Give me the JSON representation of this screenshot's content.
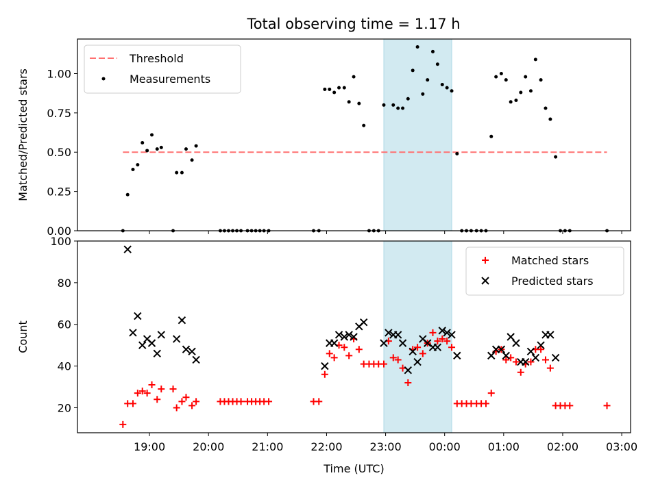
{
  "figure": {
    "title": "Total observing time = 1.17 h"
  },
  "colors": {
    "threshold": "#ff7070",
    "measurement": "#000000",
    "matched": "#ff0000",
    "predicted": "#000000",
    "observing_window": "#add8e6"
  },
  "chart_data": [
    {
      "type": "scatter",
      "panel": "top",
      "xlabel": "",
      "ylabel": "Matched/Predicted stars",
      "ylim": [
        0,
        1.22
      ],
      "xlim_hours": [
        17.78,
        27.15
      ],
      "yticks": [
        "0.00",
        "0.25",
        "0.50",
        "0.75",
        "1.00"
      ],
      "ytick_values": [
        0,
        0.25,
        0.5,
        0.75,
        1.0
      ],
      "grid": false,
      "legend": {
        "placement": "top-left",
        "entries": [
          "Threshold",
          "Measurements"
        ]
      },
      "shaded_interval_hours": [
        22.97,
        24.12
      ],
      "threshold": {
        "name": "Threshold",
        "value": 0.5,
        "x_start_hours": 18.55,
        "x_end_hours": 26.75
      },
      "series": [
        {
          "name": "Measurements",
          "marker": "dot",
          "points": [
            [
              18.55,
              0.0
            ],
            [
              18.63,
              0.23
            ],
            [
              18.72,
              0.39
            ],
            [
              18.8,
              0.42
            ],
            [
              18.88,
              0.56
            ],
            [
              18.96,
              0.51
            ],
            [
              19.04,
              0.61
            ],
            [
              19.13,
              0.52
            ],
            [
              19.2,
              0.53
            ],
            [
              19.4,
              0.0
            ],
            [
              19.46,
              0.37
            ],
            [
              19.55,
              0.37
            ],
            [
              19.62,
              0.52
            ],
            [
              19.72,
              0.45
            ],
            [
              19.79,
              0.54
            ],
            [
              20.2,
              0.0
            ],
            [
              20.27,
              0.0
            ],
            [
              20.34,
              0.0
            ],
            [
              20.41,
              0.0
            ],
            [
              20.48,
              0.0
            ],
            [
              20.55,
              0.0
            ],
            [
              20.66,
              0.0
            ],
            [
              20.73,
              0.0
            ],
            [
              20.8,
              0.0
            ],
            [
              20.87,
              0.0
            ],
            [
              20.94,
              0.0
            ],
            [
              21.02,
              0.0
            ],
            [
              21.78,
              0.0
            ],
            [
              21.87,
              0.0
            ],
            [
              21.97,
              0.9
            ],
            [
              22.05,
              0.9
            ],
            [
              22.13,
              0.88
            ],
            [
              22.21,
              0.91
            ],
            [
              22.3,
              0.91
            ],
            [
              22.38,
              0.82
            ],
            [
              22.46,
              0.98
            ],
            [
              22.55,
              0.81
            ],
            [
              22.63,
              0.67
            ],
            [
              22.72,
              0.0
            ],
            [
              22.8,
              0.0
            ],
            [
              22.88,
              0.0
            ],
            [
              22.97,
              0.8
            ],
            [
              23.13,
              0.8
            ],
            [
              23.21,
              0.78
            ],
            [
              23.29,
              0.78
            ],
            [
              23.38,
              0.84
            ],
            [
              23.46,
              1.02
            ],
            [
              23.54,
              1.17
            ],
            [
              23.63,
              0.87
            ],
            [
              23.71,
              0.96
            ],
            [
              23.8,
              1.14
            ],
            [
              23.88,
              1.06
            ],
            [
              23.96,
              0.93
            ],
            [
              24.04,
              0.91
            ],
            [
              24.12,
              0.89
            ],
            [
              24.21,
              0.49
            ],
            [
              24.29,
              0.0
            ],
            [
              24.37,
              0.0
            ],
            [
              24.45,
              0.0
            ],
            [
              24.54,
              0.0
            ],
            [
              24.62,
              0.0
            ],
            [
              24.7,
              0.0
            ],
            [
              24.79,
              0.6
            ],
            [
              24.87,
              0.98
            ],
            [
              24.96,
              1.0
            ],
            [
              25.04,
              0.96
            ],
            [
              25.12,
              0.82
            ],
            [
              25.21,
              0.83
            ],
            [
              25.29,
              0.88
            ],
            [
              25.37,
              0.98
            ],
            [
              25.46,
              0.89
            ],
            [
              25.54,
              1.09
            ],
            [
              25.63,
              0.96
            ],
            [
              25.71,
              0.78
            ],
            [
              25.79,
              0.71
            ],
            [
              25.88,
              0.47
            ],
            [
              25.96,
              0.0
            ],
            [
              26.04,
              0.0
            ],
            [
              26.12,
              0.0
            ],
            [
              26.75,
              0.0
            ]
          ]
        }
      ]
    },
    {
      "type": "scatter",
      "panel": "bottom",
      "xlabel": "Time (UTC)",
      "ylabel": "Count",
      "ylim": [
        8,
        100
      ],
      "xlim_hours": [
        17.78,
        27.15
      ],
      "yticks": [
        "20",
        "40",
        "60",
        "80",
        "100"
      ],
      "ytick_values": [
        20,
        40,
        60,
        80,
        100
      ],
      "xticks": [
        "19:00",
        "20:00",
        "21:00",
        "22:00",
        "23:00",
        "00:00",
        "01:00",
        "02:00",
        "03:00"
      ],
      "xtick_hours": [
        19,
        20,
        21,
        22,
        23,
        24,
        25,
        26,
        27
      ],
      "grid": false,
      "legend": {
        "placement": "top-right",
        "entries": [
          "Matched stars",
          "Predicted stars"
        ]
      },
      "shaded_interval_hours": [
        22.97,
        24.12
      ],
      "series": [
        {
          "name": "Matched stars",
          "marker": "plus",
          "points": [
            [
              18.55,
              12
            ],
            [
              18.63,
              22
            ],
            [
              18.72,
              22
            ],
            [
              18.8,
              27
            ],
            [
              18.88,
              28
            ],
            [
              18.96,
              27
            ],
            [
              19.04,
              31
            ],
            [
              19.13,
              24
            ],
            [
              19.2,
              29
            ],
            [
              19.4,
              29
            ],
            [
              19.46,
              20
            ],
            [
              19.55,
              23
            ],
            [
              19.62,
              25
            ],
            [
              19.72,
              21
            ],
            [
              19.79,
              23
            ],
            [
              20.2,
              23
            ],
            [
              20.27,
              23
            ],
            [
              20.34,
              23
            ],
            [
              20.41,
              23
            ],
            [
              20.48,
              23
            ],
            [
              20.55,
              23
            ],
            [
              20.66,
              23
            ],
            [
              20.73,
              23
            ],
            [
              20.8,
              23
            ],
            [
              20.87,
              23
            ],
            [
              20.94,
              23
            ],
            [
              21.02,
              23
            ],
            [
              21.78,
              23
            ],
            [
              21.87,
              23
            ],
            [
              21.97,
              36
            ],
            [
              22.05,
              46
            ],
            [
              22.13,
              44
            ],
            [
              22.21,
              50
            ],
            [
              22.3,
              49
            ],
            [
              22.38,
              45
            ],
            [
              22.46,
              53
            ],
            [
              22.55,
              48
            ],
            [
              22.63,
              41
            ],
            [
              22.72,
              41
            ],
            [
              22.8,
              41
            ],
            [
              22.88,
              41
            ],
            [
              22.97,
              41
            ],
            [
              23.05,
              52
            ],
            [
              23.13,
              44
            ],
            [
              23.21,
              43
            ],
            [
              23.29,
              39
            ],
            [
              23.38,
              32
            ],
            [
              23.46,
              48
            ],
            [
              23.54,
              49
            ],
            [
              23.63,
              46
            ],
            [
              23.71,
              51
            ],
            [
              23.8,
              56
            ],
            [
              23.88,
              52
            ],
            [
              23.96,
              53
            ],
            [
              24.04,
              52
            ],
            [
              24.12,
              49
            ],
            [
              24.21,
              22
            ],
            [
              24.29,
              22
            ],
            [
              24.37,
              22
            ],
            [
              24.45,
              22
            ],
            [
              24.54,
              22
            ],
            [
              24.62,
              22
            ],
            [
              24.7,
              22
            ],
            [
              24.79,
              27
            ],
            [
              24.87,
              47
            ],
            [
              24.96,
              48
            ],
            [
              25.04,
              43
            ],
            [
              25.12,
              44
            ],
            [
              25.21,
              42
            ],
            [
              25.29,
              37
            ],
            [
              25.37,
              41
            ],
            [
              25.46,
              42
            ],
            [
              25.54,
              48
            ],
            [
              25.63,
              48
            ],
            [
              25.71,
              43
            ],
            [
              25.79,
              39
            ],
            [
              25.88,
              21
            ],
            [
              25.96,
              21
            ],
            [
              26.04,
              21
            ],
            [
              26.12,
              21
            ],
            [
              26.75,
              21
            ]
          ]
        },
        {
          "name": "Predicted stars",
          "marker": "x",
          "points": [
            [
              18.63,
              96
            ],
            [
              18.72,
              56
            ],
            [
              18.8,
              64
            ],
            [
              18.88,
              50
            ],
            [
              18.96,
              53
            ],
            [
              19.04,
              51
            ],
            [
              19.13,
              46
            ],
            [
              19.2,
              55
            ],
            [
              19.46,
              53
            ],
            [
              19.55,
              62
            ],
            [
              19.62,
              48
            ],
            [
              19.72,
              47
            ],
            [
              19.79,
              43
            ],
            [
              21.97,
              40
            ],
            [
              22.05,
              51
            ],
            [
              22.13,
              51
            ],
            [
              22.21,
              55
            ],
            [
              22.3,
              54
            ],
            [
              22.38,
              55
            ],
            [
              22.46,
              54
            ],
            [
              22.55,
              59
            ],
            [
              22.63,
              61
            ],
            [
              22.97,
              51
            ],
            [
              23.05,
              56
            ],
            [
              23.13,
              55
            ],
            [
              23.21,
              55
            ],
            [
              23.29,
              51
            ],
            [
              23.38,
              38
            ],
            [
              23.46,
              47
            ],
            [
              23.54,
              42
            ],
            [
              23.63,
              53
            ],
            [
              23.71,
              51
            ],
            [
              23.8,
              49
            ],
            [
              23.88,
              49
            ],
            [
              23.96,
              57
            ],
            [
              24.04,
              56
            ],
            [
              24.12,
              55
            ],
            [
              24.21,
              45
            ],
            [
              24.79,
              45
            ],
            [
              24.87,
              48
            ],
            [
              24.96,
              48
            ],
            [
              25.04,
              45
            ],
            [
              25.12,
              54
            ],
            [
              25.21,
              51
            ],
            [
              25.29,
              42
            ],
            [
              25.37,
              42
            ],
            [
              25.46,
              47
            ],
            [
              25.54,
              44
            ],
            [
              25.63,
              50
            ],
            [
              25.71,
              55
            ],
            [
              25.79,
              55
            ],
            [
              25.88,
              44
            ]
          ]
        }
      ]
    }
  ]
}
